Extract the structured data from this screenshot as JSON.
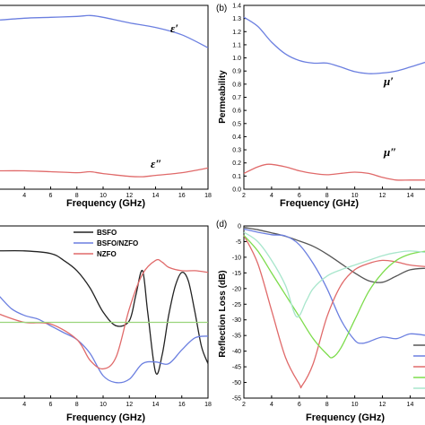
{
  "chart_data": [
    {
      "panel_label": "",
      "type": "line",
      "xlabel": "Frequency (GHz)",
      "ylabel": "",
      "xlim": [
        2,
        18
      ],
      "ylim": [
        0,
        1
      ],
      "xticks": [
        4,
        6,
        8,
        10,
        12,
        14,
        16,
        18
      ],
      "annotations": [
        "ε′",
        "ε″"
      ],
      "series": [
        {
          "color": "#6b7fe0",
          "x": [
            2,
            4,
            6,
            8,
            9,
            10,
            12,
            14,
            16,
            18
          ],
          "y": [
            0.92,
            0.93,
            0.935,
            0.94,
            0.945,
            0.935,
            0.905,
            0.88,
            0.84,
            0.77
          ]
        },
        {
          "color": "#e06a6a",
          "x": [
            2,
            4,
            6,
            8,
            9,
            10,
            12,
            13,
            14,
            16,
            18
          ],
          "y": [
            0.1,
            0.1,
            0.095,
            0.09,
            0.095,
            0.085,
            0.07,
            0.068,
            0.075,
            0.09,
            0.115
          ]
        }
      ]
    },
    {
      "panel_label": "(b)",
      "type": "line",
      "xlabel": "Frequency (GHz)",
      "ylabel": "Permeability",
      "xlim": [
        2,
        15.2
      ],
      "ylim": [
        0,
        1.4
      ],
      "xticks": [
        2,
        4,
        6,
        8,
        10,
        12,
        14
      ],
      "yticks": [
        "0.0",
        "0.1",
        "0.2",
        "0.3",
        "0.4",
        "0.5",
        "0.6",
        "0.7",
        "0.8",
        "0.9",
        "1.0",
        "1.1",
        "1.2",
        "1.3",
        "1.4"
      ],
      "annotations": [
        "μ′",
        "μ″"
      ],
      "series": [
        {
          "color": "#6b7fe0",
          "x": [
            2,
            3,
            4,
            5,
            6,
            7,
            8,
            9,
            10,
            11,
            12,
            13,
            14,
            15.2
          ],
          "y": [
            1.31,
            1.24,
            1.12,
            1.03,
            0.98,
            0.96,
            0.96,
            0.93,
            0.895,
            0.88,
            0.885,
            0.9,
            0.93,
            0.97
          ]
        },
        {
          "color": "#e06a6a",
          "x": [
            2,
            3,
            3.8,
            5,
            6,
            7,
            8,
            9,
            10,
            11,
            12,
            13,
            14,
            15.2
          ],
          "y": [
            0.12,
            0.17,
            0.19,
            0.17,
            0.14,
            0.12,
            0.11,
            0.12,
            0.13,
            0.12,
            0.09,
            0.07,
            0.07,
            0.07
          ]
        }
      ]
    },
    {
      "panel_label": "",
      "type": "line",
      "xlabel": "Frequency (GHz)",
      "ylabel": "",
      "xlim": [
        2,
        18
      ],
      "ylim": [
        0,
        1
      ],
      "xticks": [
        4,
        6,
        8,
        10,
        12,
        14,
        16,
        18
      ],
      "legend": [
        "BSFO",
        "BSFO/NZFO",
        "NZFO"
      ],
      "series": [
        {
          "name": "BSFO",
          "color": "#222222",
          "x": [
            2,
            4,
            6,
            7,
            8,
            9,
            10,
            11,
            12,
            12.5,
            13,
            13.4,
            14,
            14.5,
            15,
            15.5,
            16,
            16.5,
            17,
            17.5,
            18
          ],
          "y": [
            0.855,
            0.855,
            0.84,
            0.8,
            0.74,
            0.64,
            0.5,
            0.42,
            0.45,
            0.6,
            0.74,
            0.5,
            0.15,
            0.25,
            0.48,
            0.65,
            0.73,
            0.68,
            0.5,
            0.3,
            0.2
          ]
        },
        {
          "name": "BSFO/NZFO",
          "color": "#6b7fe0",
          "x": [
            2,
            3,
            4,
            5,
            6,
            7,
            8,
            9,
            10,
            11,
            12,
            13,
            14,
            15,
            16,
            17,
            18
          ],
          "y": [
            0.6,
            0.52,
            0.48,
            0.46,
            0.42,
            0.38,
            0.34,
            0.26,
            0.13,
            0.09,
            0.11,
            0.2,
            0.21,
            0.2,
            0.28,
            0.35,
            0.36
          ]
        },
        {
          "name": "NZFO",
          "color": "#e06a6a",
          "x": [
            2,
            4,
            6,
            8,
            9,
            10,
            11,
            12,
            13,
            14,
            14.5,
            15,
            16,
            17,
            18
          ],
          "y": [
            0.49,
            0.44,
            0.43,
            0.34,
            0.22,
            0.17,
            0.24,
            0.52,
            0.72,
            0.8,
            0.79,
            0.76,
            0.74,
            0.74,
            0.73
          ]
        },
        {
          "name": "",
          "color": "#99d47a",
          "x": [
            2,
            18
          ],
          "y": [
            0.44,
            0.44
          ]
        }
      ]
    },
    {
      "panel_label": "(d)",
      "type": "line",
      "xlabel": "Frequency (GHz)",
      "ylabel": "Reflection Loss (dB)",
      "xlim": [
        2,
        15.2
      ],
      "ylim": [
        -55,
        0
      ],
      "xticks": [
        2,
        4,
        6,
        8,
        10,
        12,
        14
      ],
      "yticks": [
        "0",
        "-5",
        "-10",
        "-15",
        "-20",
        "-25",
        "-30",
        "-35",
        "-40",
        "-45",
        "-50",
        "-55"
      ],
      "series": [
        {
          "color": "#555555",
          "x": [
            2,
            3,
            4,
            5,
            6,
            7,
            8,
            9,
            10,
            11,
            12,
            13,
            14,
            15.2
          ],
          "y": [
            -0.5,
            -1.2,
            -2.2,
            -3.3,
            -4.8,
            -6.5,
            -9,
            -12,
            -15,
            -17.5,
            -18,
            -16,
            -14,
            -13.5
          ]
        },
        {
          "color": "#6b7fe0",
          "x": [
            2,
            3,
            4,
            5,
            6,
            7,
            8,
            9,
            10,
            10.5,
            11,
            12,
            13,
            14,
            15.2
          ],
          "y": [
            -1,
            -2,
            -2.8,
            -3.2,
            -6,
            -12,
            -20,
            -30,
            -36.5,
            -37.5,
            -37,
            -35.5,
            -36,
            -34.5,
            -35
          ]
        },
        {
          "color": "#e06a6a",
          "x": [
            2,
            3,
            4,
            5,
            6,
            6.2,
            7,
            8,
            9,
            10,
            11,
            12,
            13,
            14,
            15.2
          ],
          "y": [
            -3,
            -12,
            -27,
            -42,
            -50.5,
            -51,
            -44,
            -29,
            -19,
            -14,
            -12,
            -11,
            -11.5,
            -12.5,
            -13
          ]
        },
        {
          "color": "#7ddc4c",
          "x": [
            2,
            3,
            4,
            5,
            6,
            7,
            8,
            8.4,
            9,
            10,
            11,
            12,
            13,
            14,
            15.2
          ],
          "y": [
            -3,
            -8,
            -15,
            -22,
            -29,
            -36,
            -41,
            -42,
            -39,
            -30,
            -21,
            -15,
            -11,
            -9,
            -8
          ]
        },
        {
          "color": "#a8e6cc",
          "x": [
            2,
            3,
            4,
            5,
            5.8,
            6.5,
            7,
            8,
            9,
            10,
            11,
            12,
            13,
            14,
            15.2
          ],
          "y": [
            -2,
            -5,
            -11,
            -19,
            -29,
            -24,
            -20,
            -16,
            -14,
            -12.5,
            -11,
            -9.5,
            -8.5,
            -8,
            -8.5
          ]
        }
      ]
    }
  ]
}
